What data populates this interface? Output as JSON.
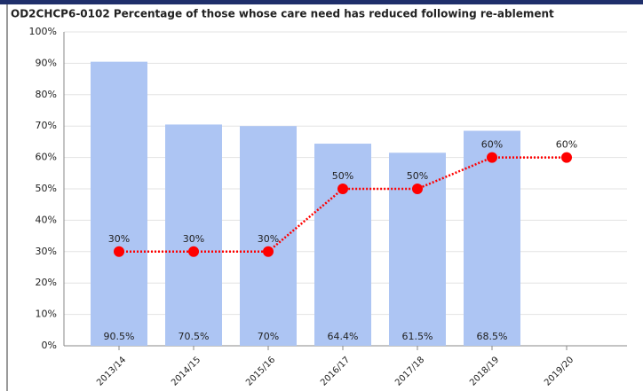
{
  "chart_data": {
    "type": "bar-line",
    "title": "OD2CHCP6-0102 Percentage of those whose care need has reduced following re-ablement",
    "categories": [
      "2013/14",
      "2014/15",
      "2015/16",
      "2016/17",
      "2017/18",
      "2018/19",
      "2019/20"
    ],
    "series": [
      {
        "type": "bar",
        "color": "#adc5f3",
        "values": [
          90.5,
          70.5,
          70,
          64.4,
          61.5,
          68.5,
          null
        ],
        "value_labels": [
          "90.5%",
          "70.5%",
          "70%",
          "64.4%",
          "61.5%",
          "68.5%",
          null
        ]
      },
      {
        "type": "line",
        "color": "#ff0000",
        "values": [
          30,
          30,
          30,
          50,
          50,
          60,
          60
        ],
        "value_labels": [
          "30%",
          "30%",
          "30%",
          "50%",
          "50%",
          "60%",
          "60%"
        ]
      }
    ],
    "ylim": [
      0,
      100
    ],
    "yticks": [
      {
        "value": 0,
        "label": "0%"
      },
      {
        "value": 10,
        "label": "10%"
      },
      {
        "value": 20,
        "label": "20%"
      },
      {
        "value": 30,
        "label": "30%"
      },
      {
        "value": 40,
        "label": "40%"
      },
      {
        "value": 50,
        "label": "50%"
      },
      {
        "value": 60,
        "label": "60%"
      },
      {
        "value": 70,
        "label": "70%"
      },
      {
        "value": 80,
        "label": "80%"
      },
      {
        "value": 90,
        "label": "90%"
      },
      {
        "value": 100,
        "label": "100%"
      }
    ],
    "grid": true
  }
}
